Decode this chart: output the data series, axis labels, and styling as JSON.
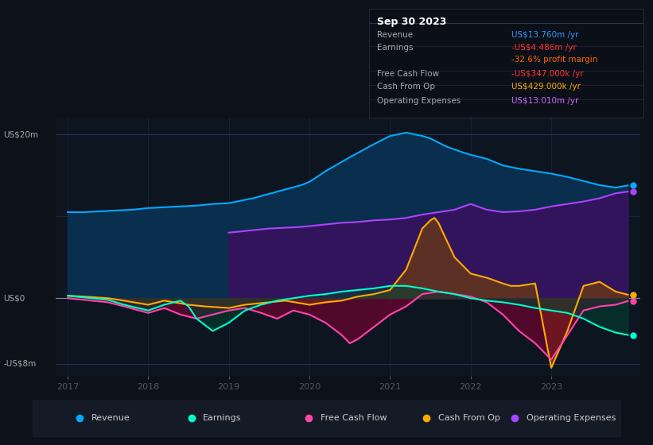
{
  "bg_color": "#0c111a",
  "plot_bg_color": "#0d1520",
  "info_box_bg": "#0a0f18",
  "title_date": "Sep 30 2023",
  "ylabel_top": "US$20m",
  "ylabel_zero": "US$0",
  "ylabel_bottom": "-US$8m",
  "ylim": [
    -9.5,
    22
  ],
  "xlim": [
    2016.85,
    2024.1
  ],
  "xticks": [
    2017,
    2018,
    2019,
    2020,
    2021,
    2022,
    2023
  ],
  "legend_items": [
    {
      "label": "Revenue",
      "color": "#00aaff"
    },
    {
      "label": "Earnings",
      "color": "#00ffcc"
    },
    {
      "label": "Free Cash Flow",
      "color": "#ff44aa"
    },
    {
      "label": "Cash From Op",
      "color": "#ffaa00"
    },
    {
      "label": "Operating Expenses",
      "color": "#aa44ff"
    }
  ],
  "info_rows": [
    {
      "label": "Revenue",
      "value": "US$13.760m /yr",
      "value_color": "#3399ff"
    },
    {
      "label": "Earnings",
      "value": "-US$4.486m /yr",
      "value_color": "#ff3333"
    },
    {
      "label": "",
      "value": "-32.6% profit margin",
      "value_color": "#ff6600"
    },
    {
      "label": "Free Cash Flow",
      "value": "-US$347.000k /yr",
      "value_color": "#ff3333"
    },
    {
      "label": "Cash From Op",
      "value": "US$429.000k /yr",
      "value_color": "#ffaa00"
    },
    {
      "label": "Operating Expenses",
      "value": "US$13.010m /yr",
      "value_color": "#cc66ff"
    }
  ],
  "revenue": {
    "x": [
      2017.0,
      2017.2,
      2017.4,
      2017.6,
      2017.8,
      2018.0,
      2018.2,
      2018.4,
      2018.6,
      2018.8,
      2019.0,
      2019.3,
      2019.6,
      2019.9,
      2020.0,
      2020.2,
      2020.5,
      2020.8,
      2021.0,
      2021.2,
      2021.4,
      2021.5,
      2021.7,
      2021.9,
      2022.0,
      2022.2,
      2022.4,
      2022.6,
      2022.8,
      2023.0,
      2023.2,
      2023.4,
      2023.6,
      2023.8,
      2023.95
    ],
    "y": [
      10.5,
      10.5,
      10.6,
      10.7,
      10.8,
      11.0,
      11.1,
      11.2,
      11.3,
      11.5,
      11.6,
      12.2,
      13.0,
      13.8,
      14.2,
      15.5,
      17.2,
      18.8,
      19.8,
      20.2,
      19.8,
      19.5,
      18.5,
      17.8,
      17.5,
      17.0,
      16.2,
      15.8,
      15.5,
      15.2,
      14.8,
      14.3,
      13.8,
      13.5,
      13.76
    ],
    "color": "#00aaff",
    "fill_color": "#0a3050",
    "fill_alpha": 0.95
  },
  "operating_expenses": {
    "x": [
      2019.0,
      2019.1,
      2019.2,
      2019.3,
      2019.5,
      2019.7,
      2019.9,
      2020.0,
      2020.2,
      2020.4,
      2020.6,
      2020.8,
      2021.0,
      2021.2,
      2021.4,
      2021.6,
      2021.8,
      2022.0,
      2022.2,
      2022.4,
      2022.6,
      2022.8,
      2023.0,
      2023.2,
      2023.4,
      2023.6,
      2023.8,
      2023.95
    ],
    "y": [
      8.0,
      8.1,
      8.2,
      8.3,
      8.5,
      8.6,
      8.7,
      8.8,
      9.0,
      9.2,
      9.3,
      9.5,
      9.6,
      9.8,
      10.2,
      10.5,
      10.8,
      11.5,
      10.8,
      10.5,
      10.6,
      10.8,
      11.2,
      11.5,
      11.8,
      12.2,
      12.8,
      13.01
    ],
    "color": "#aa44ff",
    "fill_color": "#3a1060",
    "fill_alpha": 0.85
  },
  "cash_from_op": {
    "x": [
      2017.0,
      2017.2,
      2017.5,
      2017.7,
      2018.0,
      2018.2,
      2018.5,
      2018.7,
      2019.0,
      2019.2,
      2019.5,
      2019.7,
      2020.0,
      2020.2,
      2020.4,
      2020.6,
      2020.8,
      2021.0,
      2021.2,
      2021.4,
      2021.5,
      2021.55,
      2021.6,
      2021.8,
      2022.0,
      2022.2,
      2022.4,
      2022.5,
      2022.6,
      2022.8,
      2023.0,
      2023.2,
      2023.4,
      2023.6,
      2023.8,
      2023.95
    ],
    "y": [
      0.3,
      0.2,
      0.0,
      -0.3,
      -0.8,
      -0.3,
      -0.8,
      -1.0,
      -1.2,
      -0.8,
      -0.5,
      -0.3,
      -0.8,
      -0.5,
      -0.3,
      0.2,
      0.5,
      1.0,
      3.5,
      8.5,
      9.5,
      9.8,
      9.2,
      5.0,
      3.0,
      2.5,
      1.8,
      1.5,
      1.5,
      1.8,
      -8.5,
      -4.0,
      1.5,
      2.0,
      0.8,
      0.429
    ],
    "color": "#ffaa00",
    "fill_color": "#7a4400",
    "fill_alpha": 0.6
  },
  "free_cash_flow": {
    "x": [
      2017.0,
      2017.2,
      2017.5,
      2017.7,
      2018.0,
      2018.2,
      2018.4,
      2018.6,
      2018.8,
      2019.0,
      2019.2,
      2019.4,
      2019.6,
      2019.8,
      2020.0,
      2020.2,
      2020.4,
      2020.5,
      2020.6,
      2020.8,
      2021.0,
      2021.2,
      2021.4,
      2021.6,
      2021.8,
      2022.0,
      2022.2,
      2022.4,
      2022.6,
      2022.8,
      2023.0,
      2023.2,
      2023.4,
      2023.6,
      2023.8,
      2023.95
    ],
    "y": [
      0.0,
      -0.2,
      -0.5,
      -1.0,
      -1.8,
      -1.2,
      -2.0,
      -2.5,
      -2.0,
      -1.5,
      -1.2,
      -1.8,
      -2.5,
      -1.5,
      -2.0,
      -3.0,
      -4.5,
      -5.5,
      -5.0,
      -3.5,
      -2.0,
      -1.0,
      0.5,
      0.8,
      0.5,
      0.2,
      -0.5,
      -2.0,
      -4.0,
      -5.5,
      -7.5,
      -4.5,
      -1.5,
      -1.0,
      -0.8,
      -0.347
    ],
    "color": "#ff44aa",
    "fill_color": "#880033",
    "fill_alpha": 0.55
  },
  "earnings": {
    "x": [
      2017.0,
      2017.2,
      2017.5,
      2017.7,
      2018.0,
      2018.2,
      2018.4,
      2018.5,
      2018.6,
      2018.8,
      2019.0,
      2019.2,
      2019.4,
      2019.6,
      2019.8,
      2020.0,
      2020.2,
      2020.4,
      2020.6,
      2020.8,
      2021.0,
      2021.2,
      2021.4,
      2021.6,
      2021.8,
      2022.0,
      2022.2,
      2022.4,
      2022.6,
      2022.8,
      2023.0,
      2023.2,
      2023.4,
      2023.6,
      2023.8,
      2023.95
    ],
    "y": [
      0.3,
      0.1,
      -0.2,
      -0.8,
      -1.5,
      -0.8,
      -0.3,
      -1.0,
      -2.5,
      -4.0,
      -3.0,
      -1.5,
      -0.8,
      -0.3,
      0.0,
      0.3,
      0.5,
      0.8,
      1.0,
      1.2,
      1.5,
      1.5,
      1.2,
      0.8,
      0.5,
      0.0,
      -0.3,
      -0.5,
      -0.8,
      -1.2,
      -1.5,
      -1.8,
      -2.5,
      -3.5,
      -4.2,
      -4.486
    ],
    "color": "#00ffcc",
    "fill_color": "#004433",
    "fill_alpha": 0.55
  }
}
